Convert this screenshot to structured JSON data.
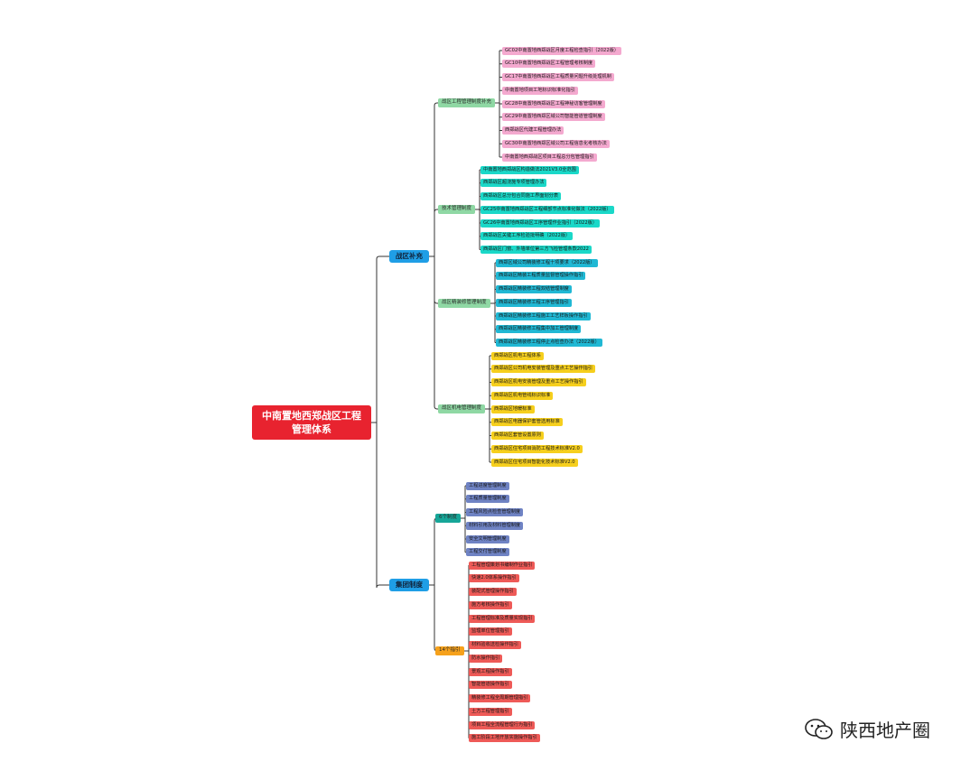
{
  "root": {
    "line1": "中南置地西郑战区工程",
    "line2": "管理体系"
  },
  "colors": {
    "root": "#e8232f",
    "level1": "#1f9ee6",
    "green": "#8fd8a4",
    "pink": "#f4a9cf",
    "cyan": "#1ad8c8",
    "teal": "#20b8d4",
    "yellow": "#f6cf1d",
    "purple": "#6f83c4",
    "red": "#ee5a57",
    "orange": "#f6a11b",
    "tealgreen": "#16a698",
    "line": "#333333"
  },
  "branches": [
    {
      "label": "战区补充",
      "groups": [
        {
          "label": "战区工程管理制度补充",
          "color": "green",
          "leafColor": "pink",
          "items": [
            "GC02中南置地西郑战区月度工程检查指引（2022版）",
            "GC10中南置地西郑战区工程管理考核制度",
            "GC17中南置地西郑战区工程质量问题升级处理机制",
            "中南置地项目工地标识标准化指引",
            "GC28中南置地西郑战区工程神秘访客管理制度",
            "GC29中南置地西郑区域公司智能管道管理制度",
            "西郑战区代建工程管理办法",
            "GC30中南置地西郑区域公司工程信息化考核办法",
            "中南置地西郑战区项目工程总分包管理指引"
          ]
        },
        {
          "label": "技术管理制度",
          "color": "green",
          "leafColor": "cyan",
          "items": [
            "中南置地西郑战区构造做法2021V3.0全范围",
            "西郑战区超浇施专项管理办法",
            "西郑战区总分包合同施工界面划分表",
            "GC25中南置地西郑战区工程细部节点标准化做法（2022版）",
            "GC26中南置地西郑战区工序管理作业指引（2022版）",
            "西郑战区关键工序检验批明确（2022版）",
            "西郑战区门窗、外墙单位第三方飞检管理条款2022"
          ]
        },
        {
          "label": "战区精装修管理制度",
          "color": "green",
          "leafColor": "teal",
          "items": [
            "西郑区域公司精装修工程十项要求（2022版）",
            "西郑战区精装工程质量监督管理操作指引",
            "西郑战区精装修工程双结管理制度",
            "西郑战区精装修工程工序管理指引",
            "西郑战区精装修工程施工工艺样板操作指引",
            "西郑战区精装修工程集中加工管理制度",
            "西郑战区精装修工程停止点检查办法（2022版）"
          ]
        },
        {
          "label": "战区机电管理制度",
          "color": "green",
          "leafColor": "yellow",
          "items": [
            "西郑战区机电工程体系",
            "西郑战区公司机电安装管理及重点工艺操作指引",
            "西郑战区机电安装管理及重点工艺操作指引",
            "西郑战区机电管线标识标准",
            "西郑战区地暖标准",
            "西郑战区电器保护套管选用标准",
            "西郑战区套管设置原则",
            "西郑战区住宅项目消防工程技术标准V2.0",
            "西郑战区住宅项目智能化技术标准V2.0"
          ]
        }
      ]
    },
    {
      "label": "集团制度",
      "groups": [
        {
          "label": "6个制度",
          "color": "tealgreen",
          "leafColor": "purple",
          "items": [
            "工程进度管理制度",
            "工程质量管理制度",
            "工程风险点检查管理制度",
            "材料引用及材料管理制度",
            "安全文明管理制度",
            "工程交付管理制度"
          ]
        },
        {
          "label": "14个指引",
          "color": "orange",
          "leafColor": "red",
          "items": [
            "工程管理策划书编制作业指引",
            "快速2.0体系操作指引",
            "装配式管理操作指引",
            "施方考核操作指引",
            "工程管理标准及质量实现指引",
            "监理单位管理指引",
            "材料验收送检操作指引",
            "防水操作指引",
            "景观工程操作指引",
            "智能管道操作指引",
            "精装修工程全周期管理指引",
            "土方工程管理指引",
            "项目工程全流程管理行为指引",
            "施工阶段工地开放实施操作指引"
          ]
        }
      ]
    }
  ],
  "watermark": {
    "text": "陕西地产圈",
    "icon": "wechat-icon"
  }
}
